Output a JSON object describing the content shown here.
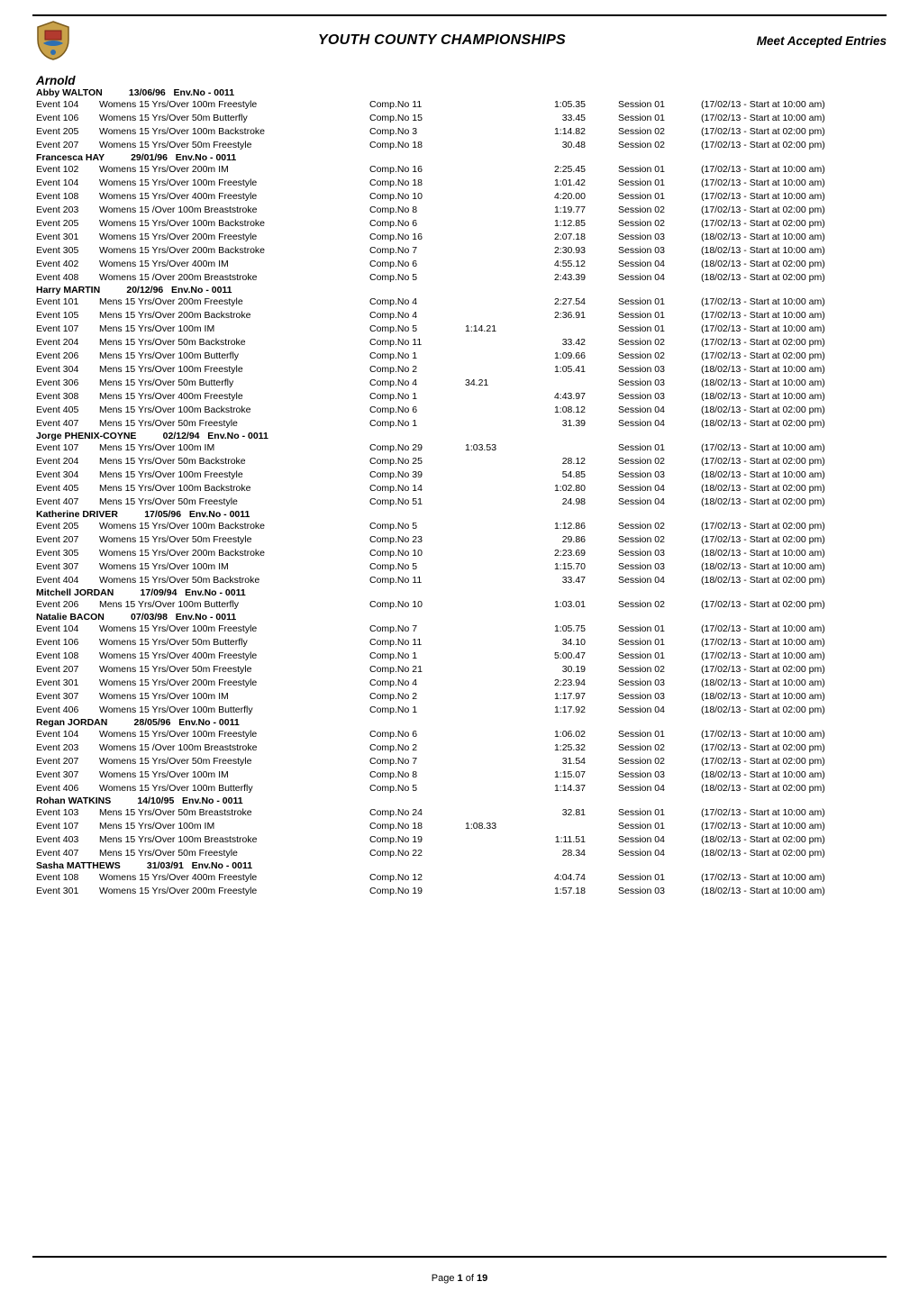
{
  "header": {
    "title": "YOUTH COUNTY CHAMPIONSHIPS",
    "right": "Meet Accepted Entries",
    "logo_alt": "Club crest logo"
  },
  "club": "Arnold",
  "footer": {
    "prefix": "Page ",
    "current": "1",
    "suffix": " of ",
    "total": "19"
  },
  "swimmers": [
    {
      "name": "Abby WALTON",
      "dob": "13/06/96",
      "env": "Env.No - 0011",
      "entries": [
        {
          "ev": "Event 104",
          "desc": "Womens 15 Yrs/Over 100m Freestyle",
          "comp": "Comp.No 11",
          "time": "",
          "seed": "1:05.35",
          "sess": "Session 01",
          "note": "(17/02/13 - Start at 10:00 am)"
        },
        {
          "ev": "Event 106",
          "desc": "Womens 15 Yrs/Over 50m Butterfly",
          "comp": "Comp.No 15",
          "time": "",
          "seed": "33.45",
          "sess": "Session 01",
          "note": "(17/02/13 - Start at 10:00 am)"
        },
        {
          "ev": "Event 205",
          "desc": "Womens 15 Yrs/Over 100m Backstroke",
          "comp": "Comp.No 3",
          "time": "",
          "seed": "1:14.82",
          "sess": "Session 02",
          "note": "(17/02/13 - Start at 02:00 pm)"
        },
        {
          "ev": "Event 207",
          "desc": "Womens 15 Yrs/Over 50m Freestyle",
          "comp": "Comp.No 18",
          "time": "",
          "seed": "30.48",
          "sess": "Session 02",
          "note": "(17/02/13 - Start at 02:00 pm)"
        }
      ]
    },
    {
      "name": "Francesca HAY",
      "dob": "29/01/96",
      "env": "Env.No - 0011",
      "entries": [
        {
          "ev": "Event 102",
          "desc": "Womens 15 Yrs/Over 200m IM",
          "comp": "Comp.No 16",
          "time": "",
          "seed": "2:25.45",
          "sess": "Session 01",
          "note": "(17/02/13 - Start at 10:00 am)"
        },
        {
          "ev": "Event 104",
          "desc": "Womens 15 Yrs/Over 100m Freestyle",
          "comp": "Comp.No 18",
          "time": "",
          "seed": "1:01.42",
          "sess": "Session 01",
          "note": "(17/02/13 - Start at 10:00 am)"
        },
        {
          "ev": "Event 108",
          "desc": "Womens 15 Yrs/Over 400m Freestyle",
          "comp": "Comp.No 10",
          "time": "",
          "seed": "4:20.00",
          "sess": "Session 01",
          "note": "(17/02/13 - Start at 10:00 am)"
        },
        {
          "ev": "Event 203",
          "desc": "Womens 15 /Over 100m Breaststroke",
          "comp": "Comp.No 8",
          "time": "",
          "seed": "1:19.77",
          "sess": "Session 02",
          "note": "(17/02/13 - Start at 02:00 pm)"
        },
        {
          "ev": "Event 205",
          "desc": "Womens 15 Yrs/Over 100m Backstroke",
          "comp": "Comp.No 6",
          "time": "",
          "seed": "1:12.85",
          "sess": "Session 02",
          "note": "(17/02/13 - Start at 02:00 pm)"
        },
        {
          "ev": "Event 301",
          "desc": "Womens 15 Yrs/Over 200m Freestyle",
          "comp": "Comp.No 16",
          "time": "",
          "seed": "2:07.18",
          "sess": "Session 03",
          "note": "(18/02/13 - Start at 10:00 am)"
        },
        {
          "ev": "Event 305",
          "desc": "Womens 15 Yrs/Over 200m Backstroke",
          "comp": "Comp.No 7",
          "time": "",
          "seed": "2:30.93",
          "sess": "Session 03",
          "note": "(18/02/13 - Start at 10:00 am)"
        },
        {
          "ev": "Event 402",
          "desc": "Womens 15 Yrs/Over 400m IM",
          "comp": "Comp.No 6",
          "time": "",
          "seed": "4:55.12",
          "sess": "Session 04",
          "note": "(18/02/13 - Start at 02:00 pm)"
        },
        {
          "ev": "Event 408",
          "desc": "Womens 15 /Over 200m Breaststroke",
          "comp": "Comp.No 5",
          "time": "",
          "seed": "2:43.39",
          "sess": "Session 04",
          "note": "(18/02/13 - Start at 02:00 pm)"
        }
      ]
    },
    {
      "name": "Harry MARTIN",
      "dob": "20/12/96",
      "env": "Env.No - 0011",
      "entries": [
        {
          "ev": "Event 101",
          "desc": "Mens 15 Yrs/Over 200m Freestyle",
          "comp": "Comp.No 4",
          "time": "",
          "seed": "2:27.54",
          "sess": "Session 01",
          "note": "(17/02/13 - Start at 10:00 am)"
        },
        {
          "ev": "Event 105",
          "desc": "Mens 15 Yrs/Over 200m Backstroke",
          "comp": "Comp.No 4",
          "time": "",
          "seed": "2:36.91",
          "sess": "Session 01",
          "note": "(17/02/13 - Start at 10:00 am)"
        },
        {
          "ev": "Event 107",
          "desc": "Mens 15 Yrs/Over 100m IM",
          "comp": "Comp.No 5",
          "time": "1:14.21",
          "seed": "",
          "sess": "Session 01",
          "note": "(17/02/13 - Start at 10:00 am)"
        },
        {
          "ev": "Event 204",
          "desc": "Mens 15 Yrs/Over 50m Backstroke",
          "comp": "Comp.No 11",
          "time": "",
          "seed": "33.42",
          "sess": "Session 02",
          "note": "(17/02/13 - Start at 02:00 pm)"
        },
        {
          "ev": "Event 206",
          "desc": "Mens 15 Yrs/Over 100m Butterfly",
          "comp": "Comp.No 1",
          "time": "",
          "seed": "1:09.66",
          "sess": "Session 02",
          "note": "(17/02/13 - Start at 02:00 pm)"
        },
        {
          "ev": "Event 304",
          "desc": "Mens 15 Yrs/Over 100m Freestyle",
          "comp": "Comp.No 2",
          "time": "",
          "seed": "1:05.41",
          "sess": "Session 03",
          "note": "(18/02/13 - Start at 10:00 am)"
        },
        {
          "ev": "Event 306",
          "desc": "Mens 15 Yrs/Over 50m Butterfly",
          "comp": "Comp.No 4",
          "time": "34.21",
          "seed": "",
          "sess": "Session 03",
          "note": "(18/02/13 - Start at 10:00 am)"
        },
        {
          "ev": "Event 308",
          "desc": "Mens 15 Yrs/Over 400m Freestyle",
          "comp": "Comp.No 1",
          "time": "",
          "seed": "4:43.97",
          "sess": "Session 03",
          "note": "(18/02/13 - Start at 10:00 am)"
        },
        {
          "ev": "Event 405",
          "desc": "Mens 15 Yrs/Over 100m Backstroke",
          "comp": "Comp.No 6",
          "time": "",
          "seed": "1:08.12",
          "sess": "Session 04",
          "note": "(18/02/13 - Start at 02:00 pm)"
        },
        {
          "ev": "Event 407",
          "desc": "Mens 15 Yrs/Over 50m Freestyle",
          "comp": "Comp.No 1",
          "time": "",
          "seed": "31.39",
          "sess": "Session 04",
          "note": "(18/02/13 - Start at 02:00 pm)"
        }
      ]
    },
    {
      "name": "Jorge PHENIX-COYNE",
      "dob": "02/12/94",
      "env": "Env.No - 0011",
      "entries": [
        {
          "ev": "Event 107",
          "desc": "Mens 15 Yrs/Over 100m IM",
          "comp": "Comp.No 29",
          "time": "1:03.53",
          "seed": "",
          "sess": "Session 01",
          "note": "(17/02/13 - Start at 10:00 am)"
        },
        {
          "ev": "Event 204",
          "desc": "Mens 15 Yrs/Over 50m Backstroke",
          "comp": "Comp.No 25",
          "time": "",
          "seed": "28.12",
          "sess": "Session 02",
          "note": "(17/02/13 - Start at 02:00 pm)"
        },
        {
          "ev": "Event 304",
          "desc": "Mens 15 Yrs/Over 100m Freestyle",
          "comp": "Comp.No 39",
          "time": "",
          "seed": "54.85",
          "sess": "Session 03",
          "note": "(18/02/13 - Start at 10:00 am)"
        },
        {
          "ev": "Event 405",
          "desc": "Mens 15 Yrs/Over 100m Backstroke",
          "comp": "Comp.No 14",
          "time": "",
          "seed": "1:02.80",
          "sess": "Session 04",
          "note": "(18/02/13 - Start at 02:00 pm)"
        },
        {
          "ev": "Event 407",
          "desc": "Mens 15 Yrs/Over 50m Freestyle",
          "comp": "Comp.No 51",
          "time": "",
          "seed": "24.98",
          "sess": "Session 04",
          "note": "(18/02/13 - Start at 02:00 pm)"
        }
      ]
    },
    {
      "name": "Katherine DRIVER",
      "dob": "17/05/96",
      "env": "Env.No - 0011",
      "entries": [
        {
          "ev": "Event 205",
          "desc": "Womens 15 Yrs/Over 100m Backstroke",
          "comp": "Comp.No 5",
          "time": "",
          "seed": "1:12.86",
          "sess": "Session 02",
          "note": "(17/02/13 - Start at 02:00 pm)"
        },
        {
          "ev": "Event 207",
          "desc": "Womens 15 Yrs/Over 50m Freestyle",
          "comp": "Comp.No 23",
          "time": "",
          "seed": "29.86",
          "sess": "Session 02",
          "note": "(17/02/13 - Start at 02:00 pm)"
        },
        {
          "ev": "Event 305",
          "desc": "Womens 15 Yrs/Over 200m Backstroke",
          "comp": "Comp.No 10",
          "time": "",
          "seed": "2:23.69",
          "sess": "Session 03",
          "note": "(18/02/13 - Start at 10:00 am)"
        },
        {
          "ev": "Event 307",
          "desc": "Womens 15 Yrs/Over 100m IM",
          "comp": "Comp.No 5",
          "time": "",
          "seed": "1:15.70",
          "sess": "Session 03",
          "note": "(18/02/13 - Start at 10:00 am)"
        },
        {
          "ev": "Event 404",
          "desc": "Womens 15 Yrs/Over 50m Backstroke",
          "comp": "Comp.No 11",
          "time": "",
          "seed": "33.47",
          "sess": "Session 04",
          "note": "(18/02/13 - Start at 02:00 pm)"
        }
      ]
    },
    {
      "name": "Mitchell JORDAN",
      "dob": "17/09/94",
      "env": "Env.No - 0011",
      "entries": [
        {
          "ev": "Event 206",
          "desc": "Mens 15 Yrs/Over 100m Butterfly",
          "comp": "Comp.No 10",
          "time": "",
          "seed": "1:03.01",
          "sess": "Session 02",
          "note": "(17/02/13 - Start at 02:00 pm)"
        }
      ]
    },
    {
      "name": "Natalie BACON",
      "dob": "07/03/98",
      "env": "Env.No - 0011",
      "entries": [
        {
          "ev": "Event 104",
          "desc": "Womens 15 Yrs/Over 100m Freestyle",
          "comp": "Comp.No 7",
          "time": "",
          "seed": "1:05.75",
          "sess": "Session 01",
          "note": "(17/02/13 - Start at 10:00 am)"
        },
        {
          "ev": "Event 106",
          "desc": "Womens 15 Yrs/Over 50m Butterfly",
          "comp": "Comp.No 11",
          "time": "",
          "seed": "34.10",
          "sess": "Session 01",
          "note": "(17/02/13 - Start at 10:00 am)"
        },
        {
          "ev": "Event 108",
          "desc": "Womens 15 Yrs/Over 400m Freestyle",
          "comp": "Comp.No 1",
          "time": "",
          "seed": "5:00.47",
          "sess": "Session 01",
          "note": "(17/02/13 - Start at 10:00 am)"
        },
        {
          "ev": "Event 207",
          "desc": "Womens 15 Yrs/Over 50m Freestyle",
          "comp": "Comp.No 21",
          "time": "",
          "seed": "30.19",
          "sess": "Session 02",
          "note": "(17/02/13 - Start at 02:00 pm)"
        },
        {
          "ev": "Event 301",
          "desc": "Womens 15 Yrs/Over 200m Freestyle",
          "comp": "Comp.No 4",
          "time": "",
          "seed": "2:23.94",
          "sess": "Session 03",
          "note": "(18/02/13 - Start at 10:00 am)"
        },
        {
          "ev": "Event 307",
          "desc": "Womens 15 Yrs/Over 100m IM",
          "comp": "Comp.No 2",
          "time": "",
          "seed": "1:17.97",
          "sess": "Session 03",
          "note": "(18/02/13 - Start at 10:00 am)"
        },
        {
          "ev": "Event 406",
          "desc": "Womens 15 Yrs/Over 100m Butterfly",
          "comp": "Comp.No 1",
          "time": "",
          "seed": "1:17.92",
          "sess": "Session 04",
          "note": "(18/02/13 - Start at 02:00 pm)"
        }
      ]
    },
    {
      "name": "Regan JORDAN",
      "dob": "28/05/96",
      "env": "Env.No - 0011",
      "entries": [
        {
          "ev": "Event 104",
          "desc": "Womens 15 Yrs/Over 100m Freestyle",
          "comp": "Comp.No 6",
          "time": "",
          "seed": "1:06.02",
          "sess": "Session 01",
          "note": "(17/02/13 - Start at 10:00 am)"
        },
        {
          "ev": "Event 203",
          "desc": "Womens 15 /Over 100m Breaststroke",
          "comp": "Comp.No 2",
          "time": "",
          "seed": "1:25.32",
          "sess": "Session 02",
          "note": "(17/02/13 - Start at 02:00 pm)"
        },
        {
          "ev": "Event 207",
          "desc": "Womens 15 Yrs/Over 50m Freestyle",
          "comp": "Comp.No 7",
          "time": "",
          "seed": "31.54",
          "sess": "Session 02",
          "note": "(17/02/13 - Start at 02:00 pm)"
        },
        {
          "ev": "Event 307",
          "desc": "Womens 15 Yrs/Over 100m IM",
          "comp": "Comp.No 8",
          "time": "",
          "seed": "1:15.07",
          "sess": "Session 03",
          "note": "(18/02/13 - Start at 10:00 am)"
        },
        {
          "ev": "Event 406",
          "desc": "Womens 15 Yrs/Over 100m Butterfly",
          "comp": "Comp.No 5",
          "time": "",
          "seed": "1:14.37",
          "sess": "Session 04",
          "note": "(18/02/13 - Start at 02:00 pm)"
        }
      ]
    },
    {
      "name": "Rohan WATKINS",
      "dob": "14/10/95",
      "env": "Env.No - 0011",
      "entries": [
        {
          "ev": "Event 103",
          "desc": "Mens 15 Yrs/Over 50m Breaststroke",
          "comp": "Comp.No 24",
          "time": "",
          "seed": "32.81",
          "sess": "Session 01",
          "note": "(17/02/13 - Start at 10:00 am)"
        },
        {
          "ev": "Event 107",
          "desc": "Mens 15 Yrs/Over 100m IM",
          "comp": "Comp.No 18",
          "time": "1:08.33",
          "seed": "",
          "sess": "Session 01",
          "note": "(17/02/13 - Start at 10:00 am)"
        },
        {
          "ev": "Event 403",
          "desc": "Mens 15 Yrs/Over 100m Breaststroke",
          "comp": "Comp.No 19",
          "time": "",
          "seed": "1:11.51",
          "sess": "Session 04",
          "note": "(18/02/13 - Start at 02:00 pm)"
        },
        {
          "ev": "Event 407",
          "desc": "Mens 15 Yrs/Over 50m Freestyle",
          "comp": "Comp.No 22",
          "time": "",
          "seed": "28.34",
          "sess": "Session 04",
          "note": "(18/02/13 - Start at 02:00 pm)"
        }
      ]
    },
    {
      "name": "Sasha MATTHEWS",
      "dob": "31/03/91",
      "env": "Env.No - 0011",
      "entries": [
        {
          "ev": "Event 108",
          "desc": "Womens 15 Yrs/Over 400m Freestyle",
          "comp": "Comp.No 12",
          "time": "",
          "seed": "4:04.74",
          "sess": "Session 01",
          "note": "(17/02/13 - Start at 10:00 am)"
        },
        {
          "ev": "Event 301",
          "desc": "Womens 15 Yrs/Over 200m Freestyle",
          "comp": "Comp.No 19",
          "time": "",
          "seed": "1:57.18",
          "sess": "Session 03",
          "note": "(18/02/13 - Start at 10:00 am)"
        }
      ]
    }
  ]
}
